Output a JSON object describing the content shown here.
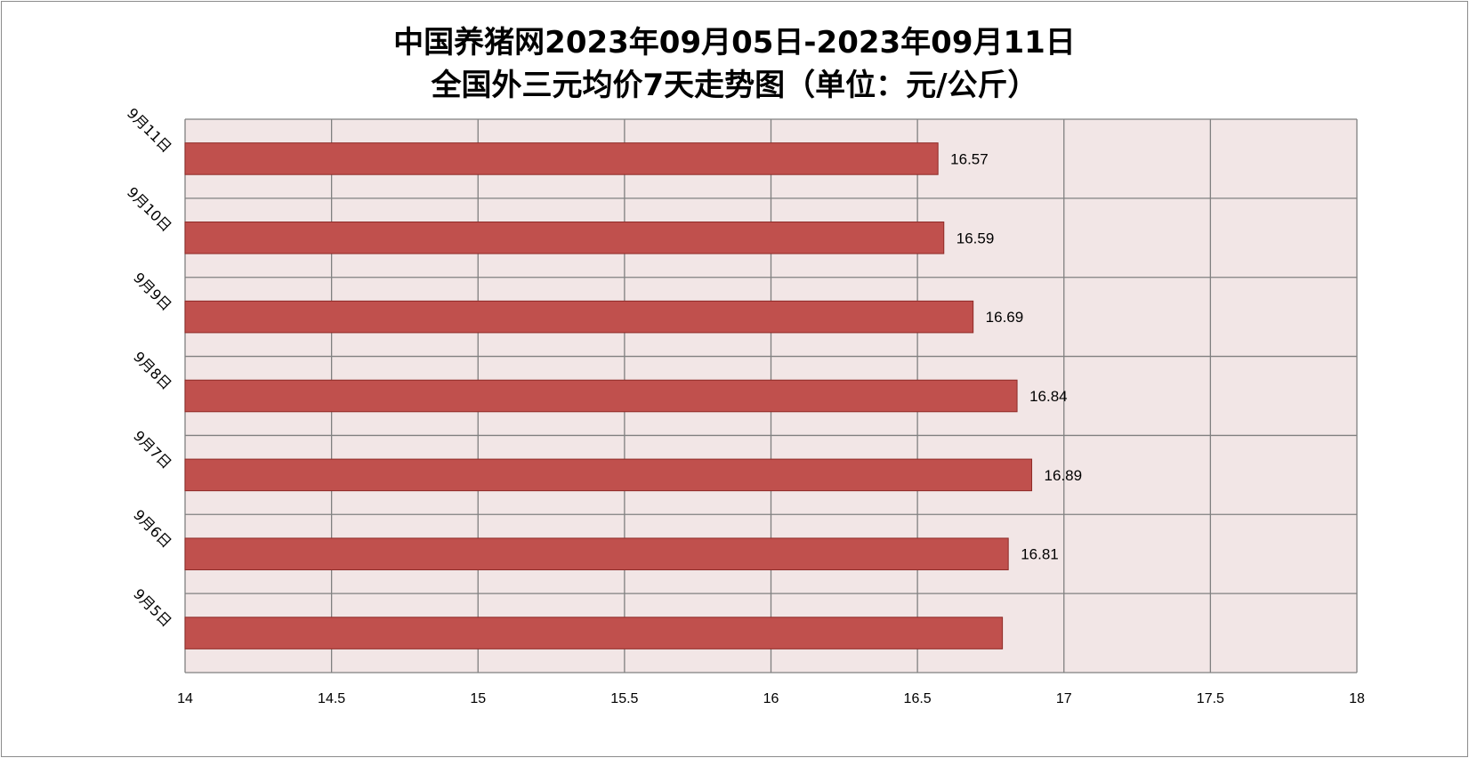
{
  "title": {
    "line1": "中国养猪网2023年09月05日-2023年09月11日",
    "line2": "全国外三元均价7天走势图（单位：元/公斤）"
  },
  "colors": {
    "bar_fill": "#c0504d",
    "bar_stroke": "#8e2a27",
    "plot_bg": "#f2e6e6",
    "grid": "#808080"
  },
  "chart_data": {
    "type": "bar",
    "orientation": "horizontal",
    "title": "中国养猪网2023年09月05日-2023年09月11日 全国外三元均价7天走势图（单位：元/公斤）",
    "categories": [
      "9月5日",
      "9月6日",
      "9月7日",
      "9月8日",
      "9月9日",
      "9月10日",
      "9月11日"
    ],
    "values": [
      16.79,
      16.81,
      16.89,
      16.84,
      16.69,
      16.59,
      16.57
    ],
    "data_labels": [
      "",
      "16.81",
      "16.89",
      "16.84",
      "16.69",
      "16.59",
      "16.57"
    ],
    "xlim": [
      14,
      18
    ],
    "xticks": [
      "14",
      "14.5",
      "15",
      "15.5",
      "16",
      "16.5",
      "17",
      "17.5",
      "18"
    ],
    "grid": true,
    "legend": "none"
  }
}
